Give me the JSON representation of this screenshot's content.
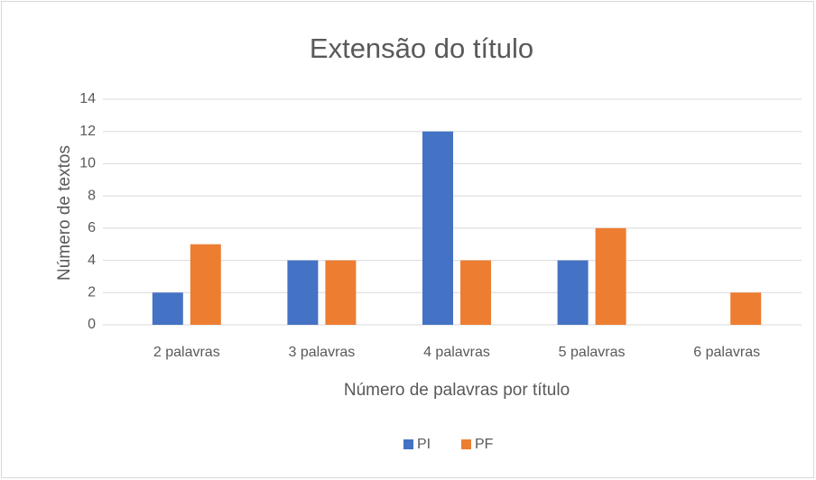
{
  "chart_data": {
    "type": "bar",
    "title": "Extensão do título",
    "xlabel": "Número de palavras por título",
    "ylabel": "Número de textos",
    "categories": [
      "2 palavras",
      "3 palavras",
      "4 palavras",
      "5 palavras",
      "6 palavras"
    ],
    "series": [
      {
        "name": "PI",
        "color": "#4472c4",
        "values": [
          2,
          4,
          12,
          4,
          0
        ]
      },
      {
        "name": "PF",
        "color": "#ed7d31",
        "values": [
          5,
          4,
          4,
          6,
          2
        ]
      }
    ],
    "ylim": [
      0,
      14
    ],
    "yticks": [
      0,
      2,
      4,
      6,
      8,
      10,
      12,
      14
    ],
    "grid": true,
    "legend": "bottom"
  }
}
